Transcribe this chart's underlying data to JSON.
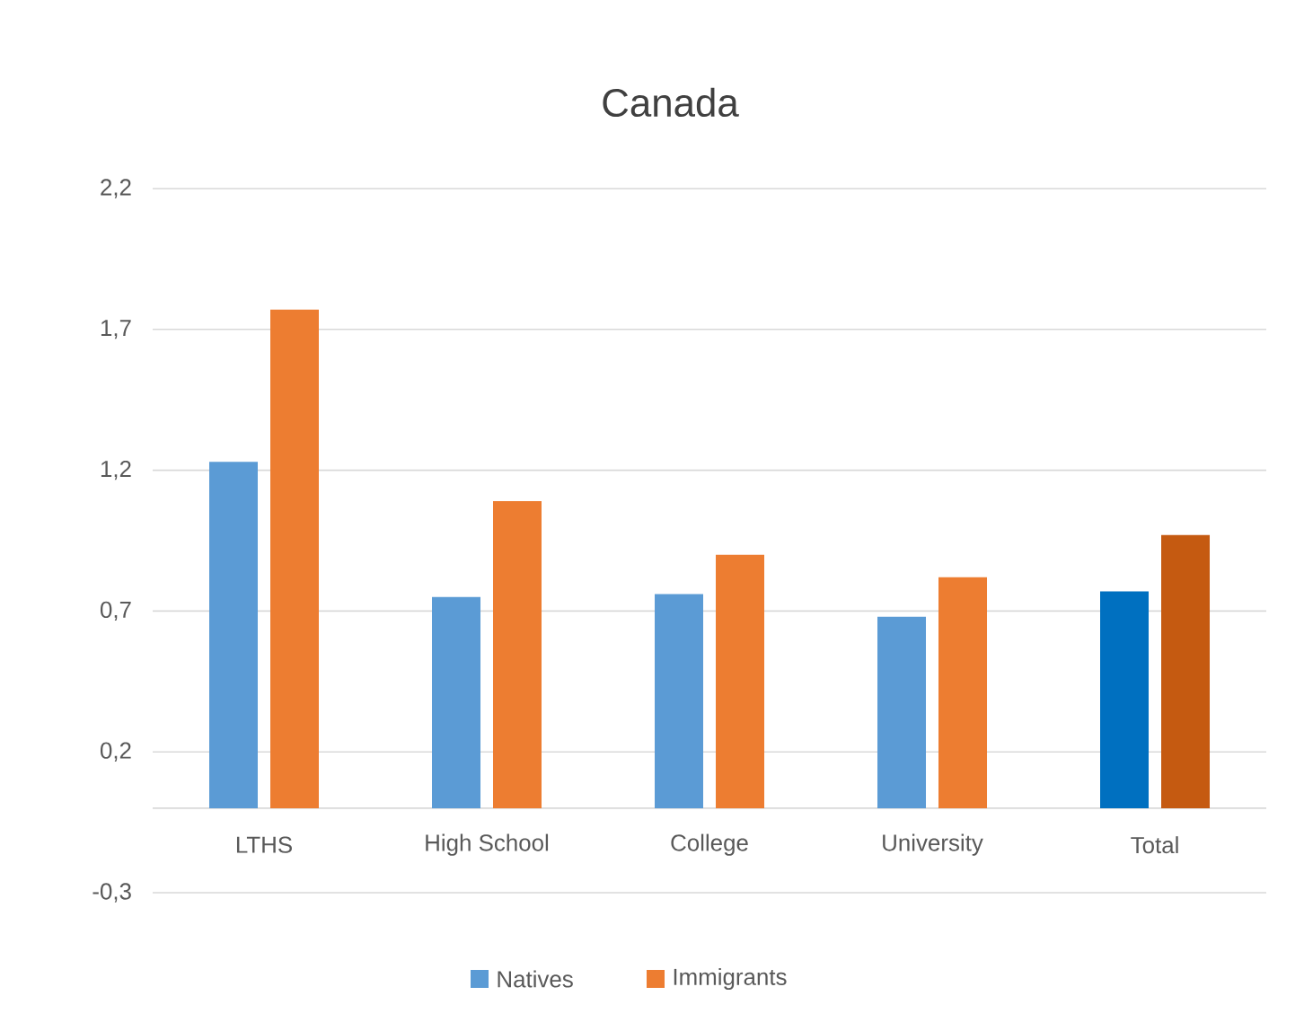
{
  "chart_data": {
    "type": "bar",
    "title": "Canada",
    "categories": [
      "LTHS",
      "High School",
      "College",
      "University",
      "Total"
    ],
    "series": [
      {
        "name": "Natives",
        "color": "#5b9bd5",
        "colors": [
          "#5b9bd5",
          "#5b9bd5",
          "#5b9bd5",
          "#5b9bd5",
          "#0070c0"
        ],
        "values": [
          1.23,
          0.75,
          0.76,
          0.68,
          0.77
        ]
      },
      {
        "name": "Immigrants",
        "color": "#ed7d31",
        "colors": [
          "#ed7d31",
          "#ed7d31",
          "#ed7d31",
          "#ed7d31",
          "#c55a11"
        ],
        "values": [
          1.77,
          1.09,
          0.9,
          0.82,
          0.97
        ]
      }
    ],
    "ylim": [
      -0.3,
      2.2
    ],
    "yticks": [
      {
        "value": -0.3,
        "label": "-0,3"
      },
      {
        "value": 0.2,
        "label": "0,2"
      },
      {
        "value": 0.7,
        "label": "0,7"
      },
      {
        "value": 1.2,
        "label": "1,2"
      },
      {
        "value": 1.7,
        "label": "1,7"
      },
      {
        "value": 2.2,
        "label": "2,2"
      }
    ],
    "grid": "y",
    "legend": "bottom"
  }
}
